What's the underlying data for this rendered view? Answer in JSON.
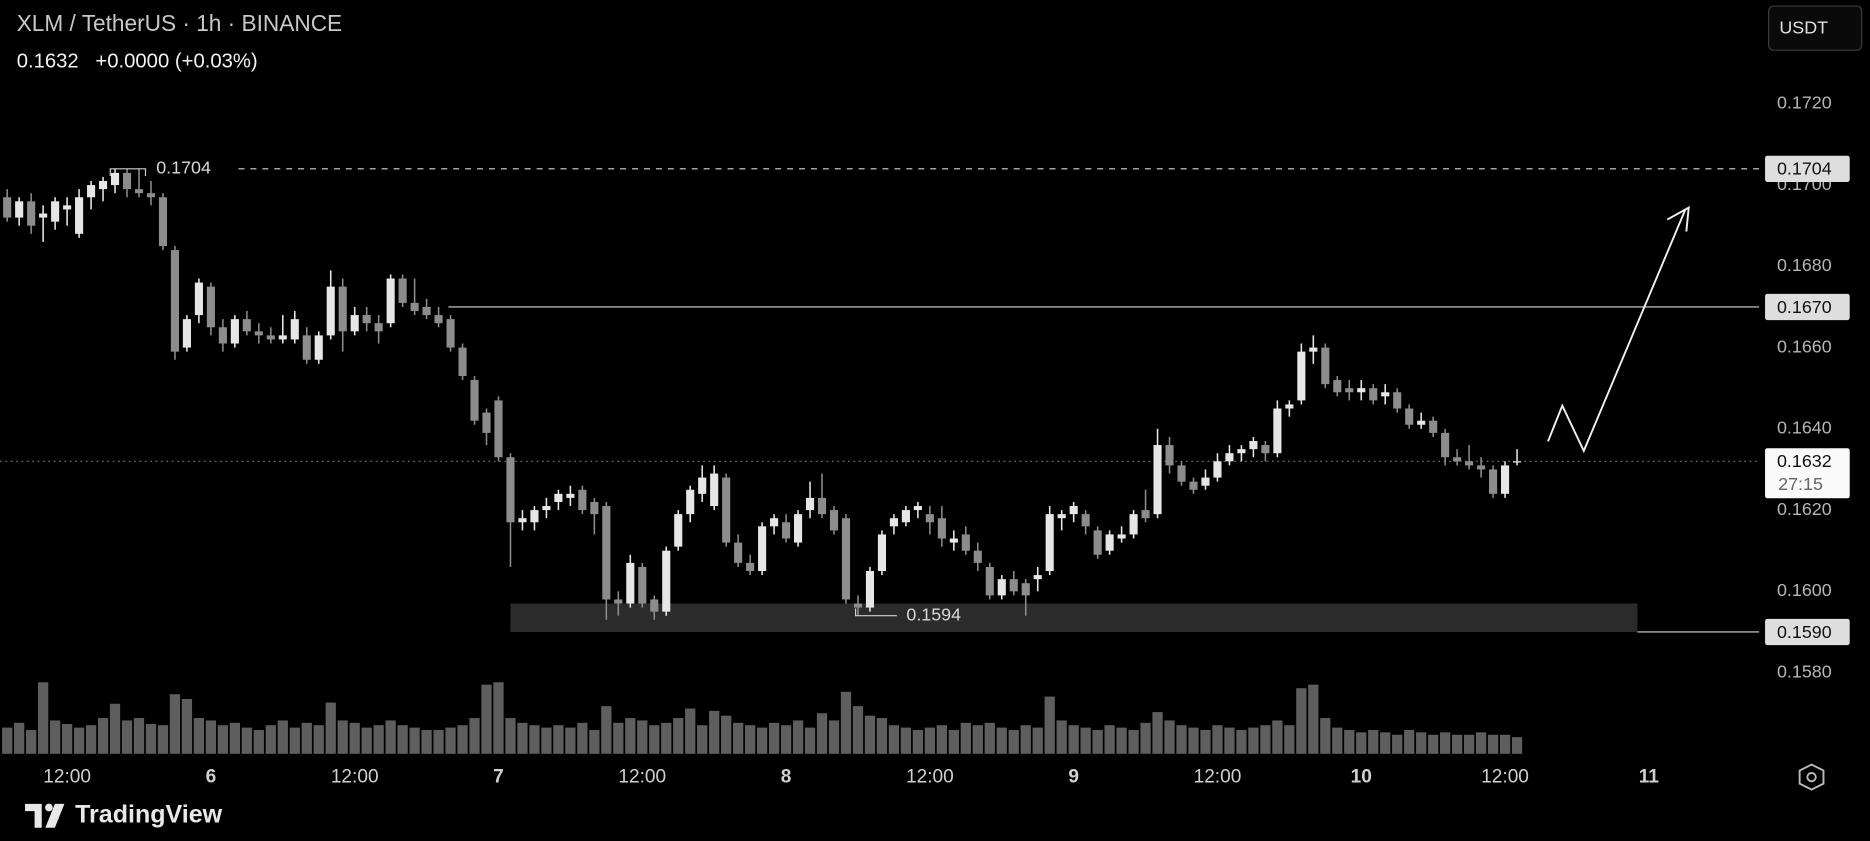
{
  "chart_data": {
    "type": "candlestick",
    "title": "XLM / TetherUS · 1h · BINANCE",
    "last_price": "0.1632",
    "change": "+0.0000 (+0.03%)",
    "currency": "USDT",
    "countdown": "27:15",
    "brand": "TradingView",
    "up_color": "#e6e6e6",
    "down_color": "#8c8c8c",
    "volume_color": "#5e5e5e",
    "xlim": [
      -0.6,
      146.2
    ],
    "ylim": [
      0.156,
      0.1745
    ],
    "xticks": [
      {
        "value": 5,
        "label": "12:00"
      },
      {
        "value": 17,
        "label": "6"
      },
      {
        "value": 29,
        "label": "12:00"
      },
      {
        "value": 41,
        "label": "7"
      },
      {
        "value": 53,
        "label": "12:00"
      },
      {
        "value": 65,
        "label": "8"
      },
      {
        "value": 77,
        "label": "12:00"
      },
      {
        "value": 89,
        "label": "9"
      },
      {
        "value": 101,
        "label": "12:00"
      },
      {
        "value": 113,
        "label": "10"
      },
      {
        "value": 125,
        "label": "12:00"
      },
      {
        "value": 137,
        "label": "11"
      }
    ],
    "yticks": [
      {
        "value": 0.172,
        "label": "0.1720"
      },
      {
        "value": 0.17,
        "label": "0.1700"
      },
      {
        "value": 0.168,
        "label": "0.1680"
      },
      {
        "value": 0.166,
        "label": "0.1660"
      },
      {
        "value": 0.164,
        "label": "0.1640"
      },
      {
        "value": 0.162,
        "label": "0.1620"
      },
      {
        "value": 0.16,
        "label": "0.1600"
      },
      {
        "value": 0.158,
        "label": "0.1580"
      }
    ],
    "price_lines": [
      {
        "value": 0.1704,
        "label": "0.1704",
        "style": "dashed"
      },
      {
        "value": 0.167,
        "label": "0.1670",
        "style": "solid"
      },
      {
        "value": 0.1632,
        "label": "0.1632",
        "style": "dotted"
      },
      {
        "value": 0.159,
        "label": "0.1590",
        "style": "solid"
      }
    ],
    "zone": [
      0.159,
      0.1597
    ],
    "annotations": [
      {
        "value": 0.1704,
        "label": "0.1704"
      },
      {
        "value": 0.1594,
        "label": "0.1594"
      }
    ],
    "ohlc": [
      [
        0.1697,
        0.1699,
        0.1691,
        0.1692
      ],
      [
        0.1692,
        0.1697,
        0.169,
        0.1696
      ],
      [
        0.1696,
        0.1698,
        0.1688,
        0.169
      ],
      [
        0.1692,
        0.1695,
        0.1686,
        0.1693
      ],
      [
        0.1691,
        0.1697,
        0.1689,
        0.1696
      ],
      [
        0.1694,
        0.1697,
        0.169,
        0.1695
      ],
      [
        0.1688,
        0.1699,
        0.1687,
        0.1697
      ],
      [
        0.1697,
        0.1701,
        0.1694,
        0.17
      ],
      [
        0.1699,
        0.1702,
        0.1696,
        0.1701
      ],
      [
        0.17,
        0.1704,
        0.1698,
        0.1703
      ],
      [
        0.1703,
        0.1704,
        0.1697,
        0.1699
      ],
      [
        0.1699,
        0.1704,
        0.1697,
        0.1698
      ],
      [
        0.1698,
        0.1701,
        0.1695,
        0.1697
      ],
      [
        0.1697,
        0.1698,
        0.1684,
        0.1685
      ],
      [
        0.1684,
        0.1685,
        0.1657,
        0.1659
      ],
      [
        0.166,
        0.1668,
        0.1659,
        0.1667
      ],
      [
        0.1668,
        0.1677,
        0.1666,
        0.1676
      ],
      [
        0.1675,
        0.1676,
        0.1663,
        0.1665
      ],
      [
        0.1665,
        0.1667,
        0.1659,
        0.1661
      ],
      [
        0.1661,
        0.1668,
        0.166,
        0.1667
      ],
      [
        0.1667,
        0.1669,
        0.1663,
        0.1664
      ],
      [
        0.1664,
        0.1666,
        0.1661,
        0.1663
      ],
      [
        0.1663,
        0.1665,
        0.1661,
        0.1662
      ],
      [
        0.1662,
        0.1668,
        0.1661,
        0.1663
      ],
      [
        0.1662,
        0.1669,
        0.1661,
        0.1667
      ],
      [
        0.1663,
        0.1665,
        0.1656,
        0.1657
      ],
      [
        0.1657,
        0.1664,
        0.1656,
        0.1663
      ],
      [
        0.1663,
        0.1679,
        0.1662,
        0.1675
      ],
      [
        0.1675,
        0.1677,
        0.1659,
        0.1664
      ],
      [
        0.1664,
        0.167,
        0.1663,
        0.1668
      ],
      [
        0.1668,
        0.167,
        0.1664,
        0.1666
      ],
      [
        0.1666,
        0.1668,
        0.1661,
        0.1664
      ],
      [
        0.1666,
        0.1678,
        0.1665,
        0.1677
      ],
      [
        0.1677,
        0.1678,
        0.167,
        0.1671
      ],
      [
        0.1671,
        0.1677,
        0.1668,
        0.1669
      ],
      [
        0.167,
        0.1672,
        0.1667,
        0.1668
      ],
      [
        0.1668,
        0.167,
        0.1665,
        0.1666
      ],
      [
        0.1667,
        0.1668,
        0.1659,
        0.166
      ],
      [
        0.166,
        0.1661,
        0.1652,
        0.1653
      ],
      [
        0.1652,
        0.1653,
        0.1641,
        0.1642
      ],
      [
        0.1644,
        0.1645,
        0.1636,
        0.1639
      ],
      [
        0.1647,
        0.1648,
        0.1632,
        0.1633
      ],
      [
        0.1633,
        0.1634,
        0.1606,
        0.1617
      ],
      [
        0.1617,
        0.162,
        0.1615,
        0.1618
      ],
      [
        0.1617,
        0.1621,
        0.1615,
        0.162
      ],
      [
        0.162,
        0.1623,
        0.1618,
        0.1621
      ],
      [
        0.1622,
        0.1625,
        0.162,
        0.1624
      ],
      [
        0.1623,
        0.1626,
        0.1621,
        0.1624
      ],
      [
        0.1625,
        0.1626,
        0.1619,
        0.162
      ],
      [
        0.1622,
        0.1623,
        0.1614,
        0.1619
      ],
      [
        0.1621,
        0.1622,
        0.1593,
        0.1598
      ],
      [
        0.1598,
        0.16,
        0.1594,
        0.1597
      ],
      [
        0.1597,
        0.1609,
        0.1596,
        0.1607
      ],
      [
        0.1606,
        0.1607,
        0.1596,
        0.1597
      ],
      [
        0.1598,
        0.1599,
        0.1593,
        0.1595
      ],
      [
        0.1595,
        0.1611,
        0.1594,
        0.161
      ],
      [
        0.1611,
        0.162,
        0.161,
        0.1619
      ],
      [
        0.1619,
        0.1626,
        0.1617,
        0.1625
      ],
      [
        0.1624,
        0.1631,
        0.1622,
        0.1628
      ],
      [
        0.1621,
        0.1631,
        0.162,
        0.1629
      ],
      [
        0.1628,
        0.1629,
        0.1611,
        0.1612
      ],
      [
        0.1612,
        0.1614,
        0.1606,
        0.1607
      ],
      [
        0.1607,
        0.1609,
        0.1604,
        0.1605
      ],
      [
        0.1605,
        0.1617,
        0.1604,
        0.1616
      ],
      [
        0.1616,
        0.1619,
        0.1614,
        0.1618
      ],
      [
        0.1617,
        0.1619,
        0.1612,
        0.1613
      ],
      [
        0.1612,
        0.162,
        0.1611,
        0.1619
      ],
      [
        0.162,
        0.1627,
        0.1618,
        0.1623
      ],
      [
        0.1623,
        0.1629,
        0.1618,
        0.1619
      ],
      [
        0.162,
        0.1621,
        0.1614,
        0.1615
      ],
      [
        0.1618,
        0.1619,
        0.1597,
        0.1598
      ],
      [
        0.1597,
        0.1599,
        0.1594,
        0.1596
      ],
      [
        0.1596,
        0.1606,
        0.1595,
        0.1605
      ],
      [
        0.1605,
        0.1615,
        0.1604,
        0.1614
      ],
      [
        0.1616,
        0.1619,
        0.1614,
        0.1618
      ],
      [
        0.1617,
        0.1621,
        0.1616,
        0.162
      ],
      [
        0.162,
        0.1622,
        0.1618,
        0.1621
      ],
      [
        0.1619,
        0.1621,
        0.1614,
        0.1617
      ],
      [
        0.1618,
        0.1621,
        0.1611,
        0.1613
      ],
      [
        0.1612,
        0.1615,
        0.161,
        0.1613
      ],
      [
        0.1614,
        0.1616,
        0.1609,
        0.161
      ],
      [
        0.161,
        0.1612,
        0.1605,
        0.1607
      ],
      [
        0.1606,
        0.1607,
        0.1598,
        0.1599
      ],
      [
        0.1599,
        0.1604,
        0.1598,
        0.1603
      ],
      [
        0.1603,
        0.1605,
        0.1599,
        0.16
      ],
      [
        0.1602,
        0.1603,
        0.1594,
        0.1599
      ],
      [
        0.1603,
        0.1606,
        0.16,
        0.1604
      ],
      [
        0.1605,
        0.1621,
        0.1604,
        0.1619
      ],
      [
        0.1618,
        0.162,
        0.1615,
        0.1619
      ],
      [
        0.1619,
        0.1622,
        0.1617,
        0.1621
      ],
      [
        0.1619,
        0.162,
        0.1614,
        0.1616
      ],
      [
        0.1615,
        0.1616,
        0.1608,
        0.1609
      ],
      [
        0.161,
        0.1615,
        0.1609,
        0.1614
      ],
      [
        0.1613,
        0.1616,
        0.1612,
        0.1614
      ],
      [
        0.1614,
        0.162,
        0.1613,
        0.1619
      ],
      [
        0.162,
        0.1625,
        0.1617,
        0.1618
      ],
      [
        0.1619,
        0.164,
        0.1618,
        0.1636
      ],
      [
        0.1636,
        0.1638,
        0.1629,
        0.1631
      ],
      [
        0.1631,
        0.1632,
        0.1626,
        0.1627
      ],
      [
        0.1627,
        0.1628,
        0.1624,
        0.1625
      ],
      [
        0.1626,
        0.163,
        0.1625,
        0.1628
      ],
      [
        0.1628,
        0.1634,
        0.1627,
        0.1632
      ],
      [
        0.1632,
        0.1636,
        0.1631,
        0.1634
      ],
      [
        0.1634,
        0.1636,
        0.1632,
        0.1635
      ],
      [
        0.1635,
        0.1638,
        0.1633,
        0.1637
      ],
      [
        0.1636,
        0.1637,
        0.1632,
        0.1634
      ],
      [
        0.1634,
        0.1647,
        0.1633,
        0.1645
      ],
      [
        0.1645,
        0.1647,
        0.1643,
        0.1646
      ],
      [
        0.1647,
        0.1661,
        0.1646,
        0.1659
      ],
      [
        0.1659,
        0.1663,
        0.1656,
        0.166
      ],
      [
        0.166,
        0.1661,
        0.165,
        0.1651
      ],
      [
        0.1652,
        0.1653,
        0.1648,
        0.1649
      ],
      [
        0.165,
        0.1652,
        0.1647,
        0.1649
      ],
      [
        0.1649,
        0.1652,
        0.1647,
        0.165
      ],
      [
        0.165,
        0.1651,
        0.1646,
        0.1647
      ],
      [
        0.1648,
        0.1651,
        0.1646,
        0.1649
      ],
      [
        0.1649,
        0.165,
        0.1644,
        0.1645
      ],
      [
        0.1645,
        0.1646,
        0.164,
        0.1641
      ],
      [
        0.1641,
        0.1644,
        0.164,
        0.1642
      ],
      [
        0.1642,
        0.1643,
        0.1638,
        0.1639
      ],
      [
        0.1639,
        0.164,
        0.1631,
        0.1633
      ],
      [
        0.1633,
        0.1635,
        0.1631,
        0.1632
      ],
      [
        0.1632,
        0.1636,
        0.163,
        0.1631
      ],
      [
        0.1631,
        0.1633,
        0.1628,
        0.163
      ],
      [
        0.163,
        0.1631,
        0.1623,
        0.1624
      ],
      [
        0.1624,
        0.1632,
        0.1623,
        0.1631
      ],
      [
        0.1632,
        0.1635,
        0.1631,
        0.1632
      ]
    ],
    "volume": [
      22,
      26,
      20,
      60,
      28,
      25,
      22,
      24,
      30,
      42,
      28,
      30,
      25,
      24,
      50,
      46,
      30,
      28,
      24,
      26,
      22,
      20,
      24,
      28,
      22,
      26,
      24,
      43,
      28,
      26,
      22,
      24,
      28,
      24,
      22,
      20,
      20,
      22,
      24,
      30,
      58,
      60,
      30,
      26,
      24,
      22,
      24,
      22,
      26,
      20,
      40,
      26,
      30,
      28,
      24,
      26,
      30,
      38,
      24,
      36,
      32,
      26,
      24,
      22,
      26,
      24,
      28,
      22,
      34,
      28,
      52,
      40,
      32,
      30,
      24,
      22,
      20,
      22,
      24,
      20,
      26,
      24,
      26,
      22,
      20,
      24,
      22,
      48,
      28,
      24,
      22,
      20,
      24,
      22,
      20,
      26,
      35,
      28,
      24,
      22,
      20,
      24,
      22,
      20,
      22,
      24,
      28,
      24,
      55,
      58,
      30,
      22,
      20,
      18,
      20,
      18,
      16,
      20,
      18,
      16,
      18,
      16,
      16,
      18,
      16,
      16,
      14
    ]
  }
}
